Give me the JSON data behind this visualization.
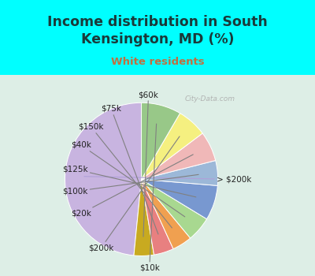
{
  "title": "Income distribution in South\nKensington, MD (%)",
  "subtitle": "White residents",
  "title_color": "#1a3a3a",
  "subtitle_color": "#c07040",
  "background_top": "#00ffff",
  "labels_ordered": [
    "> $200k",
    "$60k",
    "$75k",
    "$150k",
    "$40k",
    "$125k",
    "$100k",
    "$20k",
    "$200k",
    "$10k"
  ],
  "values_ordered": [
    46,
    4,
    4,
    4,
    5,
    7,
    5,
    6,
    6,
    8
  ],
  "colors_ordered": [
    "#c8b4e0",
    "#c8aa20",
    "#e88080",
    "#f0a050",
    "#a8d890",
    "#7898d0",
    "#9cb8d8",
    "#f0b8b8",
    "#f5f080",
    "#98c888"
  ],
  "startangle": 90,
  "label_fontsize": 7.5,
  "label_color": "#222222",
  "watermark": "City-Data.com"
}
